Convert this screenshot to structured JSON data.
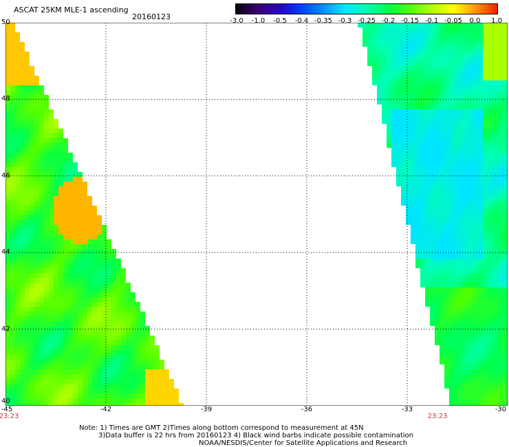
{
  "header": {
    "title": "ASCAT 25KM MLE-1 ascending",
    "date": "20160123"
  },
  "colorbar": {
    "labels": [
      "-3.0",
      "-1.0",
      "-0.5",
      "-0.4",
      "-0.35",
      "-0.3",
      "-0.25",
      "-0.2",
      "-0.15",
      "-0.1",
      "-0.05",
      "0.0",
      "1.0"
    ],
    "colors": [
      "#0a0010",
      "#3a0070",
      "#2a00c8",
      "#0040ff",
      "#0090ff",
      "#00e8ff",
      "#00ffb4",
      "#00ff4c",
      "#52ff00",
      "#b4ff00",
      "#ffff00",
      "#ff9600",
      "#ff1e00"
    ]
  },
  "map": {
    "lat_ticks": [
      "50",
      "48",
      "46",
      "44",
      "42",
      "40"
    ],
    "lon_ticks": [
      "-45",
      "-42",
      "-39",
      "-36",
      "-33",
      "-30"
    ],
    "time_labels": [
      "23:23",
      "23:23"
    ]
  },
  "notes": {
    "line1": "Note: 1) Times are GMT 2)Times along bottom correspond to measurement at 45N",
    "line2": "3)Data buffer is 22 hrs from 20160123 4) Black wind barbs indicate possible contamination",
    "line3": "NOAA/NESDIS/Center for Satellite Applications and Research"
  }
}
